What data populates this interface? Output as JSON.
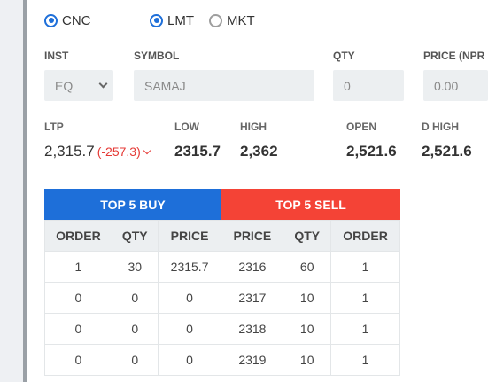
{
  "order_mode": {
    "product_cnc": "CNC",
    "type_lmt": "LMT",
    "type_mkt": "MKT"
  },
  "fields": {
    "inst_label": "INST",
    "inst_value": "EQ",
    "symbol_label": "SYMBOL",
    "symbol_value": "SAMAJ",
    "qty_label": "QTY",
    "qty_value": "0",
    "price_label": "PRICE (NPR",
    "price_value": "0.00"
  },
  "quote": {
    "ltp_label": "LTP",
    "ltp_value": "2,315.7",
    "ltp_change": "(-257.3)",
    "low_label": "LOW",
    "low_value": "2315.7",
    "high_label": "HIGH",
    "high_value": "2,362",
    "open_label": "OPEN",
    "open_value": "2,521.6",
    "dhigh_label": "D HIGH",
    "dhigh_value": "2,521.6"
  },
  "depth": {
    "buy_title": "TOP 5 BUY",
    "sell_title": "TOP 5 SELL",
    "columns": [
      "ORDER",
      "QTY",
      "PRICE",
      "PRICE",
      "QTY",
      "ORDER"
    ],
    "rows": [
      [
        "1",
        "30",
        "2315.7",
        "2316",
        "60",
        "1"
      ],
      [
        "0",
        "0",
        "0",
        "2317",
        "10",
        "1"
      ],
      [
        "0",
        "0",
        "0",
        "2318",
        "10",
        "1"
      ],
      [
        "0",
        "0",
        "0",
        "2319",
        "10",
        "1"
      ]
    ]
  },
  "colors": {
    "buy": "#1e6fd9",
    "sell": "#f44336",
    "change_negative": "#e53935"
  }
}
